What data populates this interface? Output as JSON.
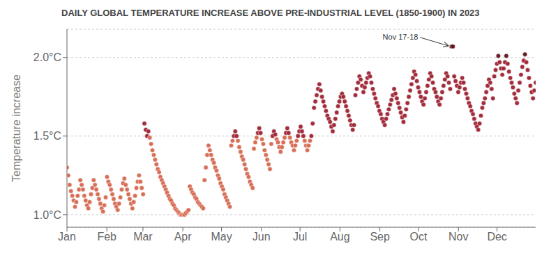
{
  "chart_data": {
    "type": "scatter",
    "title": "DAILY GLOBAL TEMPERATURE INCREASE ABOVE PRE-INDUSTRIAL LEVEL (1850-1900) IN 2023",
    "y_label": "Temperature increase",
    "xlim": [
      1,
      365
    ],
    "xticks": [
      {
        "value": 1,
        "label": "Jan"
      },
      {
        "value": 32,
        "label": "Feb"
      },
      {
        "value": 60,
        "label": "Mar"
      },
      {
        "value": 91,
        "label": "Apr"
      },
      {
        "value": 121,
        "label": "May"
      },
      {
        "value": 152,
        "label": "Jun"
      },
      {
        "value": 182,
        "label": "Jul"
      },
      {
        "value": 213,
        "label": "Aug"
      },
      {
        "value": 244,
        "label": "Sep"
      },
      {
        "value": 274,
        "label": "Oct"
      },
      {
        "value": 305,
        "label": "Nov"
      },
      {
        "value": 335,
        "label": "Dec"
      }
    ],
    "ylim": [
      0.92,
      2.18
    ],
    "yticks": [
      {
        "value": 1.0,
        "label": "1.0°C"
      },
      {
        "value": 1.5,
        "label": "1.5°C"
      },
      {
        "value": 2.0,
        "label": "2.0°C"
      }
    ],
    "grid": true,
    "annotations": [
      {
        "text": "Nov 17-18",
        "x": 299.667,
        "y": 2.07
      }
    ],
    "x": [
      1,
      2.037,
      3.074,
      4.111,
      5.148,
      6.185,
      7.222,
      8.259,
      9.296,
      10.333,
      11.37,
      12.407,
      13.444,
      14.481,
      15.519,
      16.556,
      17.593,
      18.63,
      19.667,
      20.704,
      21.741,
      22.778,
      23.815,
      24.852,
      25.889,
      26.926,
      27.963,
      29,
      30.037,
      31.074,
      32.111,
      33.148,
      34.185,
      35.222,
      36.259,
      37.296,
      38.333,
      39.37,
      40.407,
      41.444,
      42.481,
      43.519,
      44.556,
      45.593,
      46.63,
      47.667,
      48.704,
      49.741,
      50.778,
      51.815,
      52.852,
      53.889,
      54.926,
      55.963,
      57,
      58.037,
      59.074,
      60.111,
      61.148,
      62.185,
      63.222,
      64.259,
      65.296,
      66.333,
      67.37,
      68.407,
      69.444,
      70.481,
      71.519,
      72.556,
      73.593,
      74.63,
      75.667,
      76.704,
      77.741,
      78.778,
      79.815,
      80.852,
      81.889,
      82.926,
      83.963,
      85,
      86.037,
      87.074,
      88.111,
      89.148,
      90.185,
      91.222,
      92.259,
      93.296,
      94.333,
      95.37,
      96.407,
      97.444,
      98.481,
      99.519,
      100.556,
      101.593,
      102.63,
      103.667,
      104.704,
      105.741,
      106.778,
      107.815,
      108.852,
      109.889,
      110.926,
      111.963,
      113,
      114.037,
      115.074,
      116.111,
      117.148,
      118.185,
      119.222,
      120.259,
      121.296,
      122.333,
      123.37,
      124.407,
      125.444,
      126.481,
      127.519,
      128.556,
      129.593,
      130.63,
      131.667,
      132.704,
      133.741,
      134.778,
      135.815,
      136.852,
      137.889,
      138.926,
      139.963,
      141,
      142.037,
      143.074,
      144.111,
      145.148,
      146.185,
      147.222,
      148.259,
      149.296,
      150.333,
      151.37,
      152.407,
      153.444,
      154.481,
      155.519,
      156.556,
      157.593,
      158.63,
      159.667,
      160.704,
      161.741,
      162.778,
      163.815,
      164.852,
      165.889,
      166.926,
      167.963,
      169,
      170.037,
      171.074,
      172.111,
      173.148,
      174.185,
      175.222,
      176.259,
      177.296,
      178.333,
      179.37,
      180.407,
      181.444,
      182.481,
      183.519,
      184.556,
      185.593,
      186.63,
      187.667,
      188.704,
      189.741,
      190.778,
      191.815,
      192.852,
      193.889,
      194.926,
      195.963,
      197,
      198.037,
      199.074,
      200.111,
      201.148,
      202.185,
      203.222,
      204.259,
      205.296,
      206.333,
      207.37,
      208.407,
      209.444,
      210.481,
      211.519,
      212.556,
      213.593,
      214.63,
      215.667,
      216.704,
      217.741,
      218.778,
      219.815,
      220.852,
      221.889,
      222.926,
      223.963,
      225,
      226.037,
      227.074,
      228.111,
      229.148,
      230.185,
      231.222,
      232.259,
      233.296,
      234.333,
      235.37,
      236.407,
      237.444,
      238.481,
      239.519,
      240.556,
      241.593,
      242.63,
      243.667,
      244.704,
      245.741,
      246.778,
      247.815,
      248.852,
      249.889,
      250.926,
      251.963,
      253,
      254.037,
      255.074,
      256.111,
      257.148,
      258.185,
      259.222,
      260.259,
      261.296,
      262.333,
      263.37,
      264.407,
      265.444,
      266.481,
      267.519,
      268.556,
      269.593,
      270.63,
      271.667,
      272.704,
      273.741,
      274.778,
      275.815,
      276.852,
      277.889,
      278.926,
      279.963,
      281,
      282.037,
      283.074,
      284.111,
      285.148,
      286.185,
      287.222,
      288.259,
      289.296,
      290.333,
      291.37,
      292.407,
      293.444,
      294.481,
      295.519,
      296.556,
      297.593,
      298.63,
      299.667,
      300.704,
      301.741,
      302.778,
      303.815,
      304.852,
      305.889,
      306.926,
      307.963,
      309,
      310.037,
      311.074,
      312.111,
      313.148,
      314.185,
      315.222,
      316.259,
      317.296,
      318.333,
      319.37,
      320.407,
      321.444,
      322.481,
      323.519,
      324.556,
      325.593,
      326.63,
      327.667,
      328.704,
      329.741,
      330.778,
      331.815,
      332.852,
      333.889,
      334.926,
      335.963,
      337,
      338.037,
      339.074,
      340.111,
      341.148,
      342.185,
      343.222,
      344.259,
      345.296,
      346.333,
      347.37,
      348.407,
      349.444,
      350.481,
      351.519,
      352.556,
      353.593,
      354.63,
      355.667,
      356.704,
      357.741,
      358.778,
      359.815,
      360.852,
      361.889,
      362.926,
      363.963,
      365
    ],
    "values": [
      1.3,
      1.25,
      1.19,
      1.15,
      1.12,
      1.09,
      1.05,
      1.08,
      1.12,
      1.16,
      1.22,
      1.19,
      1.16,
      1.12,
      1.09,
      1.06,
      1.04,
      1.08,
      1.13,
      1.17,
      1.22,
      1.19,
      1.16,
      1.13,
      1.1,
      1.07,
      1.04,
      1.02,
      1.06,
      1.11,
      1.24,
      1.21,
      1.19,
      1.16,
      1.13,
      1.1,
      1.07,
      1.05,
      1.03,
      1.07,
      1.11,
      1.16,
      1.2,
      1.23,
      1.19,
      1.16,
      1.13,
      1.1,
      1.07,
      1.04,
      1.08,
      1.12,
      1.17,
      1.21,
      1.25,
      1.21,
      1.17,
      1.13,
      1.58,
      1.54,
      1.5,
      1.53,
      1.49,
      1.45,
      1.41,
      1.38,
      1.35,
      1.32,
      1.29,
      1.27,
      1.24,
      1.22,
      1.2,
      1.18,
      1.16,
      1.14,
      1.12,
      1.1,
      1.09,
      1.07,
      1.06,
      1.04,
      1.03,
      1.02,
      1.01,
      1.0,
      1.0,
      1.0,
      1.0,
      1.01,
      1.02,
      1.03,
      1.18,
      1.16,
      1.14,
      1.13,
      1.11,
      1.1,
      1.08,
      1.07,
      1.06,
      1.05,
      1.04,
      1.22,
      1.3,
      1.38,
      1.44,
      1.41,
      1.38,
      1.35,
      1.33,
      1.3,
      1.28,
      1.25,
      1.23,
      1.2,
      1.18,
      1.16,
      1.13,
      1.11,
      1.09,
      1.07,
      1.05,
      1.44,
      1.47,
      1.5,
      1.53,
      1.5,
      1.47,
      1.43,
      1.4,
      1.37,
      1.35,
      1.32,
      1.29,
      1.26,
      1.24,
      1.21,
      1.19,
      1.17,
      1.42,
      1.46,
      1.49,
      1.52,
      1.55,
      1.52,
      1.48,
      1.45,
      1.41,
      1.38,
      1.35,
      1.32,
      1.29,
      1.45,
      1.5,
      1.53,
      1.51,
      1.48,
      1.46,
      1.43,
      1.4,
      1.43,
      1.46,
      1.49,
      1.52,
      1.55,
      1.52,
      1.49,
      1.46,
      1.44,
      1.41,
      1.44,
      1.47,
      1.5,
      1.53,
      1.56,
      1.53,
      1.5,
      1.47,
      1.44,
      1.41,
      1.44,
      1.47,
      1.5,
      1.58,
      1.68,
      1.72,
      1.76,
      1.8,
      1.83,
      1.79,
      1.75,
      1.72,
      1.69,
      1.66,
      1.63,
      1.61,
      1.59,
      1.56,
      1.53,
      1.57,
      1.61,
      1.65,
      1.69,
      1.72,
      1.75,
      1.77,
      1.75,
      1.72,
      1.69,
      1.66,
      1.63,
      1.6,
      1.57,
      1.54,
      1.57,
      1.76,
      1.8,
      1.84,
      1.88,
      1.86,
      1.82,
      1.78,
      1.81,
      1.84,
      1.87,
      1.9,
      1.88,
      1.84,
      1.8,
      1.77,
      1.74,
      1.71,
      1.69,
      1.66,
      1.64,
      1.61,
      1.59,
      1.57,
      1.61,
      1.64,
      1.67,
      1.7,
      1.73,
      1.76,
      1.8,
      1.77,
      1.74,
      1.71,
      1.68,
      1.65,
      1.62,
      1.59,
      1.63,
      1.67,
      1.71,
      1.75,
      1.79,
      1.83,
      1.87,
      1.91,
      1.89,
      1.85,
      1.81,
      1.78,
      1.75,
      1.72,
      1.7,
      1.74,
      1.78,
      1.82,
      1.86,
      1.9,
      1.88,
      1.84,
      1.8,
      1.78,
      1.75,
      1.72,
      1.7,
      1.74,
      1.78,
      1.82,
      1.86,
      1.9,
      1.88,
      1.84,
      1.8,
      2.07,
      2.07,
      1.88,
      1.85,
      1.82,
      1.78,
      1.81,
      1.84,
      1.87,
      1.84,
      1.8,
      1.77,
      1.74,
      1.71,
      1.69,
      1.66,
      1.64,
      1.61,
      1.58,
      1.56,
      1.54,
      1.58,
      1.63,
      1.68,
      1.71,
      1.74,
      1.78,
      1.82,
      1.86,
      1.84,
      1.8,
      1.74,
      1.88,
      1.92,
      1.96,
      2.01,
      1.97,
      1.93,
      1.89,
      1.93,
      1.97,
      2.01,
      1.96,
      1.91,
      1.87,
      1.84,
      1.81,
      1.77,
      1.74,
      1.71,
      1.79,
      1.84,
      1.89,
      1.94,
      1.98,
      2.02,
      1.97,
      1.92,
      1.87,
      1.82,
      1.78,
      1.74,
      1.79,
      1.84
    ],
    "colors": [
      "#d4644a",
      "#d4644a",
      "#d4644a",
      "#d4644a",
      "#d4644a",
      "#d4644a",
      "#d4644a",
      "#d4644a",
      "#d4644a",
      "#d4644a",
      "#d4644a",
      "#d4644a",
      "#d4644a",
      "#d4644a",
      "#d4644a",
      "#d4644a",
      "#d4644a",
      "#d4644a",
      "#d4644a",
      "#d4644a",
      "#d4644a",
      "#d4644a",
      "#d4644a",
      "#d4644a",
      "#d4644a",
      "#d4644a",
      "#d4644a",
      "#d4644a",
      "#d4644a",
      "#d4644a",
      "#d4644a",
      "#d4644a",
      "#d4644a",
      "#d4644a",
      "#d4644a",
      "#d4644a",
      "#d4644a",
      "#d4644a",
      "#d4644a",
      "#d4644a",
      "#d4644a",
      "#d4644a",
      "#d4644a",
      "#d4644a",
      "#d4644a",
      "#d4644a",
      "#d4644a",
      "#d4644a",
      "#d4644a",
      "#d4644a",
      "#d4644a",
      "#d4644a",
      "#d4644a",
      "#d4644a",
      "#d4644a",
      "#d4644a",
      "#d4644a",
      "#d4644a",
      "#9b1c2c",
      "#9b1c2c",
      "#9b1c2c",
      "#9b1c2c",
      "#d4644a",
      "#d4644a",
      "#d4644a",
      "#d4644a",
      "#d4644a",
      "#d4644a",
      "#d4644a",
      "#d4644a",
      "#d4644a",
      "#d4644a",
      "#d4644a",
      "#d4644a",
      "#d4644a",
      "#d4644a",
      "#d4644a",
      "#d4644a",
      "#d4644a",
      "#d4644a",
      "#d4644a",
      "#d4644a",
      "#d4644a",
      "#d4644a",
      "#d4644a",
      "#d4644a",
      "#d4644a",
      "#d4644a",
      "#d4644a",
      "#d4644a",
      "#d4644a",
      "#d4644a",
      "#d4644a",
      "#d4644a",
      "#d4644a",
      "#d4644a",
      "#d4644a",
      "#d4644a",
      "#d4644a",
      "#d4644a",
      "#d4644a",
      "#d4644a",
      "#d4644a",
      "#d4644a",
      "#d4644a",
      "#d4644a",
      "#d4644a",
      "#d4644a",
      "#d4644a",
      "#d4644a",
      "#d4644a",
      "#d4644a",
      "#d4644a",
      "#d4644a",
      "#d4644a",
      "#d4644a",
      "#d4644a",
      "#d4644a",
      "#d4644a",
      "#d4644a",
      "#d4644a",
      "#d4644a",
      "#d4644a",
      "#d4644a",
      "#d4644a",
      "#9b1c2c",
      "#9b1c2c",
      "#9b1c2c",
      "#d4644a",
      "#d4644a",
      "#d4644a",
      "#d4644a",
      "#d4644a",
      "#d4644a",
      "#d4644a",
      "#d4644a",
      "#d4644a",
      "#d4644a",
      "#d4644a",
      "#d4644a",
      "#d4644a",
      "#d4644a",
      "#d4644a",
      "#9b1c2c",
      "#9b1c2c",
      "#9b1c2c",
      "#d4644a",
      "#d4644a",
      "#d4644a",
      "#d4644a",
      "#d4644a",
      "#d4644a",
      "#d4644a",
      "#d4644a",
      "#9b1c2c",
      "#9b1c2c",
      "#9b1c2c",
      "#d4644a",
      "#d4644a",
      "#d4644a",
      "#d4644a",
      "#d4644a",
      "#d4644a",
      "#d4644a",
      "#9b1c2c",
      "#9b1c2c",
      "#9b1c2c",
      "#d4644a",
      "#d4644a",
      "#d4644a",
      "#d4644a",
      "#d4644a",
      "#d4644a",
      "#9b1c2c",
      "#9b1c2c",
      "#9b1c2c",
      "#9b1c2c",
      "#9b1c2c",
      "#d4644a",
      "#d4644a",
      "#d4644a",
      "#d4644a",
      "#d4644a",
      "#9b1c2c",
      "#9b1c2c",
      "#9b1c2c",
      "#9b1c2c",
      "#9b1c2c",
      "#9b1c2c",
      "#9b1c2c",
      "#9b1c2c",
      "#9b1c2c",
      "#9b1c2c",
      "#9b1c2c",
      "#9b1c2c",
      "#9b1c2c",
      "#9b1c2c",
      "#9b1c2c",
      "#9b1c2c",
      "#9b1c2c",
      "#9b1c2c",
      "#9b1c2c",
      "#9b1c2c",
      "#9b1c2c",
      "#9b1c2c",
      "#9b1c2c",
      "#9b1c2c",
      "#9b1c2c",
      "#9b1c2c",
      "#9b1c2c",
      "#9b1c2c",
      "#9b1c2c",
      "#9b1c2c",
      "#9b1c2c",
      "#9b1c2c",
      "#9b1c2c",
      "#9b1c2c",
      "#9b1c2c",
      "#9b1c2c",
      "#9b1c2c",
      "#9b1c2c",
      "#9b1c2c",
      "#9b1c2c",
      "#9b1c2c",
      "#9b1c2c",
      "#9b1c2c",
      "#9b1c2c",
      "#9b1c2c",
      "#9b1c2c",
      "#9b1c2c",
      "#9b1c2c",
      "#9b1c2c",
      "#9b1c2c",
      "#9b1c2c",
      "#9b1c2c",
      "#9b1c2c",
      "#9b1c2c",
      "#9b1c2c",
      "#9b1c2c",
      "#9b1c2c",
      "#9b1c2c",
      "#9b1c2c",
      "#9b1c2c",
      "#9b1c2c",
      "#9b1c2c",
      "#9b1c2c",
      "#9b1c2c",
      "#9b1c2c",
      "#9b1c2c",
      "#9b1c2c",
      "#9b1c2c",
      "#9b1c2c",
      "#9b1c2c",
      "#9b1c2c",
      "#9b1c2c",
      "#9b1c2c",
      "#9b1c2c",
      "#9b1c2c",
      "#9b1c2c",
      "#9b1c2c",
      "#9b1c2c",
      "#9b1c2c",
      "#9b1c2c",
      "#9b1c2c",
      "#9b1c2c",
      "#9b1c2c",
      "#9b1c2c",
      "#9b1c2c",
      "#9b1c2c",
      "#9b1c2c",
      "#9b1c2c",
      "#9b1c2c",
      "#9b1c2c",
      "#9b1c2c",
      "#9b1c2c",
      "#9b1c2c",
      "#9b1c2c",
      "#9b1c2c",
      "#9b1c2c",
      "#9b1c2c",
      "#9b1c2c",
      "#9b1c2c",
      "#9b1c2c",
      "#9b1c2c",
      "#9b1c2c",
      "#9b1c2c",
      "#9b1c2c",
      "#9b1c2c",
      "#5c0a18",
      "#5c0a18",
      "#9b1c2c",
      "#9b1c2c",
      "#9b1c2c",
      "#9b1c2c",
      "#9b1c2c",
      "#9b1c2c",
      "#9b1c2c",
      "#9b1c2c",
      "#9b1c2c",
      "#9b1c2c",
      "#9b1c2c",
      "#9b1c2c",
      "#9b1c2c",
      "#9b1c2c",
      "#9b1c2c",
      "#9b1c2c",
      "#9b1c2c",
      "#9b1c2c",
      "#9b1c2c",
      "#9b1c2c",
      "#9b1c2c",
      "#9b1c2c",
      "#9b1c2c",
      "#9b1c2c",
      "#9b1c2c",
      "#9b1c2c",
      "#9b1c2c",
      "#9b1c2c",
      "#9b1c2c",
      "#9b1c2c",
      "#9b1c2c",
      "#9b1c2c",
      "#9b1c2c",
      "#5c0a18",
      "#9b1c2c",
      "#9b1c2c",
      "#9b1c2c",
      "#9b1c2c",
      "#9b1c2c",
      "#5c0a18",
      "#9b1c2c",
      "#9b1c2c",
      "#9b1c2c",
      "#9b1c2c",
      "#9b1c2c",
      "#9b1c2c",
      "#9b1c2c",
      "#9b1c2c",
      "#9b1c2c",
      "#9b1c2c",
      "#9b1c2c",
      "#9b1c2c",
      "#9b1c2c",
      "#5c0a18",
      "#9b1c2c",
      "#9b1c2c",
      "#9b1c2c",
      "#9b1c2c",
      "#9b1c2c",
      "#9b1c2c",
      "#9b1c2c",
      "#9b1c2c"
    ]
  }
}
